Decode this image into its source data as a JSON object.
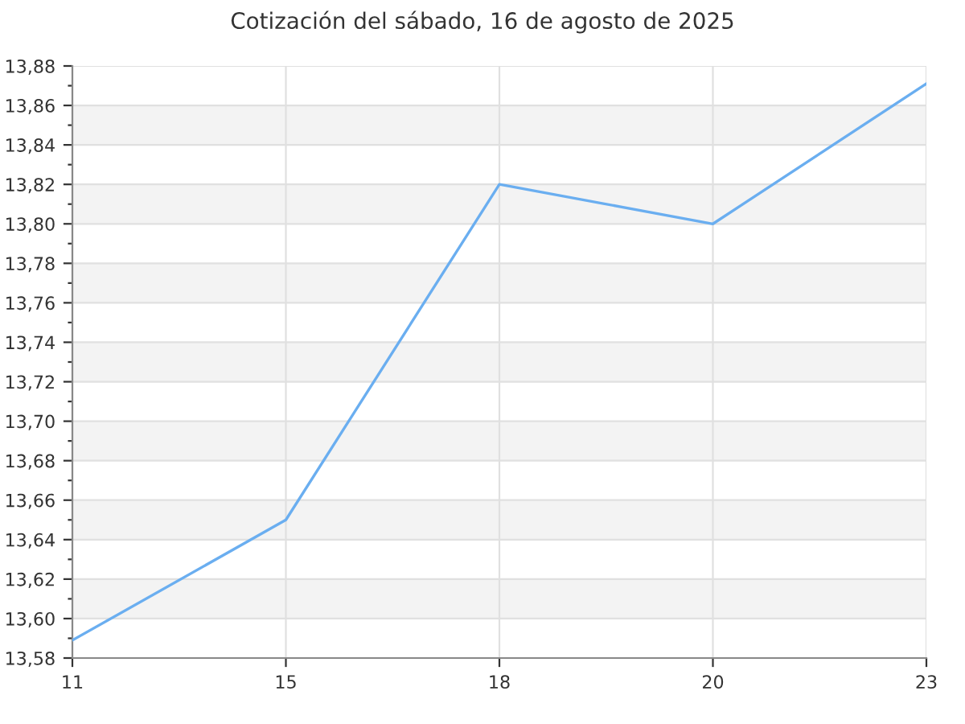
{
  "chart_data": {
    "type": "line",
    "title": "Cotización del sábado, 16 de agosto de 2025",
    "categories": [
      "11",
      "15",
      "18",
      "20",
      "23"
    ],
    "series": [
      {
        "color": "#6aaef0",
        "values": [
          13.589,
          13.65,
          13.82,
          13.8,
          13.871
        ]
      }
    ],
    "ylim": [
      13.58,
      13.88
    ],
    "yticks": [
      {
        "value": 13.58,
        "label": "13,58"
      },
      {
        "value": 13.59,
        "label": null
      },
      {
        "value": 13.6,
        "label": "13,60"
      },
      {
        "value": 13.61,
        "label": null
      },
      {
        "value": 13.62,
        "label": "13,62"
      },
      {
        "value": 13.63,
        "label": null
      },
      {
        "value": 13.64,
        "label": "13,64"
      },
      {
        "value": 13.65,
        "label": null
      },
      {
        "value": 13.66,
        "label": "13,66"
      },
      {
        "value": 13.67,
        "label": null
      },
      {
        "value": 13.68,
        "label": "13,68"
      },
      {
        "value": 13.69,
        "label": null
      },
      {
        "value": 13.7,
        "label": "13,70"
      },
      {
        "value": 13.71,
        "label": null
      },
      {
        "value": 13.72,
        "label": "13,72"
      },
      {
        "value": 13.73,
        "label": null
      },
      {
        "value": 13.74,
        "label": "13,74"
      },
      {
        "value": 13.75,
        "label": null
      },
      {
        "value": 13.76,
        "label": "13,76"
      },
      {
        "value": 13.77,
        "label": null
      },
      {
        "value": 13.78,
        "label": "13,78"
      },
      {
        "value": 13.79,
        "label": null
      },
      {
        "value": 13.8,
        "label": "13,80"
      },
      {
        "value": 13.81,
        "label": null
      },
      {
        "value": 13.82,
        "label": "13,82"
      },
      {
        "value": 13.83,
        "label": null
      },
      {
        "value": 13.84,
        "label": "13,84"
      },
      {
        "value": 13.85,
        "label": null
      },
      {
        "value": 13.86,
        "label": "13,86"
      },
      {
        "value": 13.87,
        "label": null
      },
      {
        "value": 13.88,
        "label": "13,88"
      }
    ],
    "bands": [
      {
        "axis": "y",
        "from": 13.6,
        "to": 13.62,
        "color": "#f3f3f3"
      },
      {
        "axis": "y",
        "from": 13.64,
        "to": 13.66,
        "color": "#f3f3f3"
      },
      {
        "axis": "y",
        "from": 13.68,
        "to": 13.7,
        "color": "#f3f3f3"
      },
      {
        "axis": "y",
        "from": 13.72,
        "to": 13.74,
        "color": "#f3f3f3"
      },
      {
        "axis": "y",
        "from": 13.76,
        "to": 13.78,
        "color": "#f3f3f3"
      },
      {
        "axis": "y",
        "from": 13.8,
        "to": 13.82,
        "color": "#f3f3f3"
      },
      {
        "axis": "y",
        "from": 13.84,
        "to": 13.86,
        "color": "#f3f3f3"
      }
    ],
    "grid": true,
    "legend": false,
    "marker": "none",
    "line_style": "solid"
  }
}
